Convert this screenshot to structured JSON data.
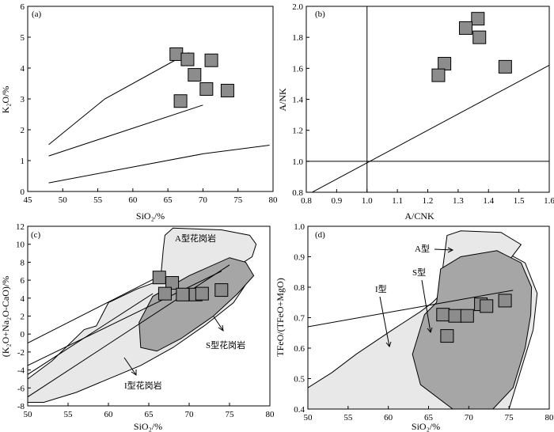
{
  "figure": {
    "colors": {
      "marker_fill": "#8c8c8c",
      "outer_field": "#e8e8e8",
      "inner_field": "#a6a6a6",
      "line": "#000000"
    }
  },
  "chart_data": [
    {
      "panel_label": "(a)",
      "type": "scatter",
      "xlabel": "SiO₂/%",
      "ylabel": "K₂O/%",
      "xlim": [
        45,
        80
      ],
      "ylim": [
        0,
        6
      ],
      "xticks": [
        "45",
        "50",
        "55",
        "60",
        "65",
        "70",
        "75",
        "80"
      ],
      "yticks": [
        "0",
        "1",
        "2",
        "3",
        "4",
        "5",
        "6"
      ],
      "points": [
        [
          66.2,
          4.45
        ],
        [
          67.8,
          4.28
        ],
        [
          71.2,
          4.25
        ],
        [
          68.8,
          3.78
        ],
        [
          70.5,
          3.32
        ],
        [
          73.5,
          3.27
        ],
        [
          66.8,
          2.93
        ]
      ],
      "boundary_lines": [
        [
          [
            48,
            1.52
          ],
          [
            56,
            3.0
          ],
          [
            68,
            4.5
          ]
        ],
        [
          [
            48,
            1.15
          ],
          [
            70,
            2.8
          ]
        ],
        [
          [
            48,
            0.28
          ],
          [
            70,
            1.22
          ],
          [
            79.5,
            1.5
          ]
        ]
      ]
    },
    {
      "panel_label": "(b)",
      "type": "scatter",
      "xlabel": "A/CNK",
      "ylabel": "A/NK",
      "xlim": [
        0.8,
        1.6
      ],
      "ylim": [
        0.8,
        2.0
      ],
      "xticks": [
        "0.8",
        "0.9",
        "1.0",
        "1.1",
        "1.2",
        "1.3",
        "1.4",
        "1.5",
        "1.6"
      ],
      "yticks": [
        "0.8",
        "1.0",
        "1.2",
        "1.4",
        "1.6",
        "1.8",
        "2.0"
      ],
      "points": [
        [
          1.365,
          1.92
        ],
        [
          1.325,
          1.86
        ],
        [
          1.37,
          1.8
        ],
        [
          1.255,
          1.63
        ],
        [
          1.235,
          1.555
        ],
        [
          1.455,
          1.61
        ]
      ],
      "reference_lines": [
        [
          [
            1.0,
            0.8
          ],
          [
            1.0,
            2.0
          ]
        ],
        [
          [
            0.8,
            1.0
          ],
          [
            1.6,
            1.0
          ]
        ],
        [
          [
            0.8,
            0.78
          ],
          [
            1.6,
            1.62
          ]
        ]
      ]
    },
    {
      "panel_label": "(c)",
      "type": "scatter",
      "xlabel": "SiO₂/%",
      "ylabel": "(K₂O+Na₂O-CaO)/%",
      "xlim": [
        50,
        80
      ],
      "ylim": [
        -8,
        12
      ],
      "xticks": [
        "50",
        "55",
        "60",
        "65",
        "70",
        "75",
        "80"
      ],
      "yticks": [
        "-8",
        "-6",
        "-4",
        "-2",
        "0",
        "2",
        "4",
        "6",
        "8",
        "10",
        "12"
      ],
      "annotations": [
        "A型花岗岩",
        "S型花岗岩",
        "I型花岗岩"
      ],
      "points": [
        [
          66.3,
          6.3
        ],
        [
          67.9,
          5.7
        ],
        [
          67.0,
          4.5
        ],
        [
          69.2,
          4.4
        ],
        [
          70.8,
          4.4
        ],
        [
          71.6,
          4.5
        ],
        [
          74.0,
          4.9
        ]
      ],
      "fields": {
        "A": [
          [
            67.0,
            11.0
          ],
          [
            68.0,
            11.8
          ],
          [
            74.0,
            11.6
          ],
          [
            77.5,
            11.0
          ],
          [
            78.3,
            10.0
          ],
          [
            77.8,
            8.6
          ],
          [
            75.0,
            7.0
          ],
          [
            73.5,
            6.0
          ],
          [
            68.5,
            5.0
          ],
          [
            66.5,
            6.5
          ],
          [
            66.8,
            9.5
          ]
        ],
        "S": [
          [
            63.8,
            1.3
          ],
          [
            65.5,
            4.2
          ],
          [
            70.0,
            6.5
          ],
          [
            75.0,
            8.5
          ],
          [
            77.0,
            8.0
          ],
          [
            78.0,
            6.5
          ],
          [
            76.0,
            4.5
          ],
          [
            73.0,
            2.0
          ],
          [
            69.0,
            -0.5
          ],
          [
            66.0,
            -1.9
          ],
          [
            64.0,
            -1.5
          ]
        ],
        "I": [
          [
            50.0,
            -7.6
          ],
          [
            52.0,
            -7.6
          ],
          [
            56.0,
            -6.5
          ],
          [
            60.0,
            -5.0
          ],
          [
            64.0,
            -3.5
          ],
          [
            68.0,
            -1.5
          ],
          [
            72.0,
            1.0
          ],
          [
            75.5,
            3.5
          ],
          [
            77.0,
            5.5
          ],
          [
            75.5,
            7.8
          ],
          [
            74.0,
            8.2
          ],
          [
            72.0,
            7.5
          ],
          [
            68.0,
            6.5
          ],
          [
            63.5,
            5.0
          ],
          [
            60.0,
            3.5
          ],
          [
            58.5,
            0.9
          ],
          [
            57.0,
            0.5
          ],
          [
            53.0,
            -3.0
          ],
          [
            50.0,
            -5.0
          ]
        ]
      },
      "reference_lines": [
        [
          [
            50,
            -1.0
          ],
          [
            66,
            6.3
          ]
        ],
        [
          [
            50,
            -3.5
          ],
          [
            74,
            7.0
          ]
        ],
        [
          [
            50,
            -4.5
          ],
          [
            65.5,
            4.5
          ]
        ],
        [
          [
            50,
            -7.0
          ],
          [
            75,
            7.7
          ]
        ]
      ]
    },
    {
      "panel_label": "(d)",
      "type": "scatter",
      "xlabel": "SiO₂/%",
      "ylabel": "TFeO/(TFeO+MgO)",
      "xlim": [
        50,
        80
      ],
      "ylim": [
        0.4,
        1.0
      ],
      "xticks": [
        "50",
        "55",
        "60",
        "65",
        "70",
        "75",
        "80"
      ],
      "yticks": [
        "0.4",
        "0.5",
        "0.6",
        "0.7",
        "0.8",
        "0.9",
        "1.0"
      ],
      "annotations": [
        "A型",
        "S型",
        "I型"
      ],
      "points": [
        [
          66.8,
          0.71
        ],
        [
          68.3,
          0.706
        ],
        [
          69.8,
          0.706
        ],
        [
          71.5,
          0.744
        ],
        [
          72.2,
          0.738
        ],
        [
          74.5,
          0.756
        ],
        [
          67.3,
          0.64
        ]
      ],
      "fields": {
        "A": [
          [
            67.3,
            0.97
          ],
          [
            69.0,
            0.985
          ],
          [
            74.0,
            0.98
          ],
          [
            76.5,
            0.94
          ],
          [
            74.5,
            0.87
          ],
          [
            73.0,
            0.85
          ],
          [
            72.5,
            0.8
          ],
          [
            71.0,
            0.787
          ],
          [
            69.0,
            0.78
          ],
          [
            67.5,
            0.77
          ],
          [
            66.5,
            0.76
          ],
          [
            66.8,
            0.87
          ]
        ],
        "S": [
          [
            66.0,
            0.75
          ],
          [
            66.5,
            0.86
          ],
          [
            69.0,
            0.9
          ],
          [
            73.5,
            0.92
          ],
          [
            76.5,
            0.88
          ],
          [
            77.8,
            0.8
          ],
          [
            77.7,
            0.71
          ],
          [
            77.0,
            0.6
          ],
          [
            75.5,
            0.47
          ],
          [
            73.0,
            0.4
          ],
          [
            68.0,
            0.4
          ],
          [
            64.0,
            0.48
          ],
          [
            63.0,
            0.58
          ],
          [
            64.5,
            0.71
          ]
        ],
        "I": [
          [
            50.0,
            0.4
          ],
          [
            50.0,
            0.47
          ],
          [
            53.0,
            0.52
          ],
          [
            56.0,
            0.58
          ],
          [
            60.5,
            0.66
          ],
          [
            64.0,
            0.72
          ],
          [
            65.5,
            0.75
          ],
          [
            67.0,
            0.79
          ],
          [
            68.0,
            0.87
          ],
          [
            70.0,
            0.92
          ],
          [
            73.5,
            0.93
          ],
          [
            77.0,
            0.88
          ],
          [
            78.5,
            0.78
          ],
          [
            78.0,
            0.66
          ],
          [
            76.5,
            0.53
          ],
          [
            75.0,
            0.4
          ]
        ]
      },
      "reference_lines": [
        [
          [
            50,
            0.67
          ],
          [
            75.5,
            0.79
          ]
        ]
      ]
    }
  ]
}
